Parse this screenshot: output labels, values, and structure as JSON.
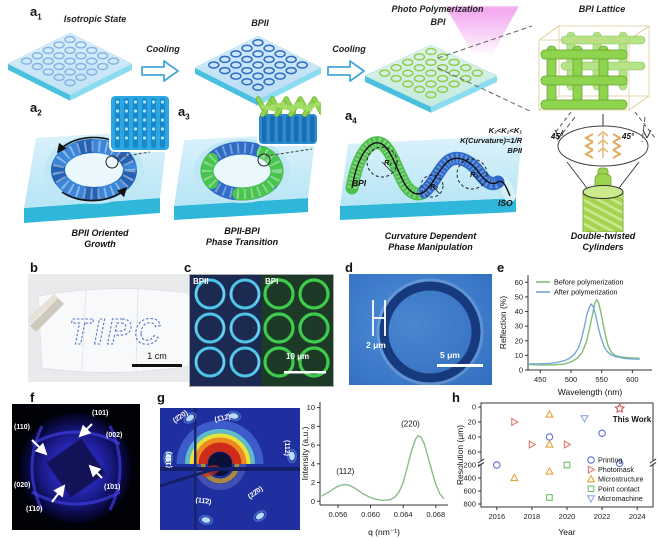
{
  "figure": {
    "a1": {
      "label": "a",
      "sub": "1",
      "isotropic_title": "Isotropic State",
      "cooling1": "Cooling",
      "bpii_title": "BPII",
      "cooling2": "Cooling",
      "photo_title": "Photo Polymerization",
      "bpi_label": "BPI",
      "lattice_title": "BPI Lattice"
    },
    "a2": {
      "label": "a",
      "sub": "2",
      "caption1": "BPII Oriented",
      "caption2": "Growth"
    },
    "a3": {
      "label": "a",
      "sub": "3",
      "caption1": "BPII-BPI",
      "caption2": "Phase Transition"
    },
    "a4": {
      "label": "a",
      "sub": "4",
      "eq1": "K₃<K₂<K₁",
      "eq2": "K(Curvature)=1/R",
      "eq3": "BPII",
      "bpi": "BPI",
      "iso": "ISO",
      "r1": "R₁",
      "r2": "R₂",
      "r3": "R₃",
      "caption1": "Curvature Dependent",
      "caption2": "Phase Manipulation"
    },
    "cylinders": {
      "angle_left": "45°",
      "angle_right": "45°",
      "caption1": "Double-twisted",
      "caption2": "Cylinders"
    },
    "b": {
      "label": "b",
      "sample_text": "TIPC",
      "scale_bar": "1 cm"
    },
    "c": {
      "label": "c",
      "left": "BPII",
      "right": "BPI",
      "scale_bar": "10 μm"
    },
    "d": {
      "label": "d",
      "thickness": "2 μm",
      "scale_bar": "5 μm"
    },
    "e": {
      "label": "e"
    },
    "f": {
      "label": "f",
      "l110": "(110)",
      "l101": "(101)",
      "l002": "(002)",
      "l020": "(020)",
      "lm110": "(1̄10)",
      "lm101": "(1̄01)"
    },
    "g": {
      "label": "g",
      "p_tl": "(2̄20)",
      "p_tc": "(1̄12̄)",
      "p_l": "(1̄12)",
      "p_r": "(112̄)",
      "p_bc": "(11̄2)",
      "p_br": "(22̄0)"
    },
    "h": {
      "label": "h"
    }
  },
  "colors": {
    "bpii_blue": "#2e6ac6",
    "bpi_green": "#8ed44e",
    "slab_teal": "#2fb7da"
  },
  "chart_data": [
    {
      "id": "reflection_spectrum",
      "type": "line",
      "xlabel": "Wavelength (nm)",
      "ylabel": "Reflection (%)",
      "xlim": [
        430,
        632
      ],
      "ylim": [
        0,
        65
      ],
      "xticks": [
        450,
        500,
        550,
        600
      ],
      "yticks": [
        0,
        10,
        20,
        30,
        40,
        50,
        60
      ],
      "xdp": 0,
      "legend_position": "top-left",
      "series": [
        {
          "name": "Before polymerization",
          "color": "#82bd72",
          "points": [
            [
              430,
              3.8
            ],
            [
              450,
              3.5
            ],
            [
              470,
              3.5
            ],
            [
              488,
              4
            ],
            [
              500,
              5.5
            ],
            [
              510,
              8
            ],
            [
              518,
              12
            ],
            [
              525,
              19
            ],
            [
              530,
              28
            ],
            [
              535,
              38
            ],
            [
              539,
              46
            ],
            [
              542,
              48
            ],
            [
              545,
              46
            ],
            [
              549,
              39
            ],
            [
              553,
              30
            ],
            [
              557,
              22
            ],
            [
              561,
              16
            ],
            [
              566,
              12
            ],
            [
              572,
              10
            ],
            [
              580,
              9
            ],
            [
              590,
              8.5
            ],
            [
              600,
              8.2
            ],
            [
              612,
              8
            ]
          ]
        },
        {
          "name": "After polymerization",
          "color": "#72a8d8",
          "points": [
            [
              430,
              4.2
            ],
            [
              450,
              4.2
            ],
            [
              465,
              4.5
            ],
            [
              478,
              5.2
            ],
            [
              490,
              6.5
            ],
            [
              498,
              8
            ],
            [
              506,
              11
            ],
            [
              512,
              15
            ],
            [
              517,
              21
            ],
            [
              522,
              30
            ],
            [
              526,
              38
            ],
            [
              530,
              43
            ],
            [
              533,
              45
            ],
            [
              536,
              43.5
            ],
            [
              540,
              38
            ],
            [
              544,
              30
            ],
            [
              549,
              22
            ],
            [
              554,
              16
            ],
            [
              559,
              12.5
            ],
            [
              565,
              10.5
            ],
            [
              572,
              9.3
            ],
            [
              580,
              8.5
            ],
            [
              590,
              7.9
            ],
            [
              600,
              7.6
            ],
            [
              612,
              7.4
            ]
          ]
        }
      ]
    },
    {
      "id": "saxs_intensity",
      "type": "line",
      "xlabel": "q (nm⁻¹)",
      "ylabel": "Intensity (a.u.)",
      "xlim": [
        0.0538,
        0.0695
      ],
      "ylim": [
        -0.4,
        10.6
      ],
      "xticks": [
        0.056,
        0.06,
        0.064,
        0.068
      ],
      "yticks": [
        0,
        2,
        4,
        6,
        8,
        10
      ],
      "xdp": 3,
      "annotations": [
        {
          "text": "(112)",
          "x": 0.0569,
          "y": 2.9
        },
        {
          "text": "(220)",
          "x": 0.0649,
          "y": 8.0
        }
      ],
      "series": [
        {
          "name": "SAXS intensity",
          "color": "#8cbb8c",
          "points": [
            [
              0.054,
              0.55
            ],
            [
              0.0545,
              0.8
            ],
            [
              0.055,
              1.05
            ],
            [
              0.0555,
              1.35
            ],
            [
              0.056,
              1.6
            ],
            [
              0.0565,
              1.75
            ],
            [
              0.057,
              1.78
            ],
            [
              0.0575,
              1.65
            ],
            [
              0.058,
              1.45
            ],
            [
              0.0585,
              1.15
            ],
            [
              0.059,
              0.85
            ],
            [
              0.0595,
              0.6
            ],
            [
              0.06,
              0.4
            ],
            [
              0.0605,
              0.25
            ],
            [
              0.061,
              0.15
            ],
            [
              0.0615,
              0.1
            ],
            [
              0.062,
              0.12
            ],
            [
              0.0625,
              0.2
            ],
            [
              0.063,
              0.45
            ],
            [
              0.0635,
              1.0
            ],
            [
              0.064,
              2.0
            ],
            [
              0.0645,
              3.6
            ],
            [
              0.065,
              5.3
            ],
            [
              0.0655,
              6.6
            ],
            [
              0.0658,
              7.0
            ],
            [
              0.0662,
              6.85
            ],
            [
              0.0666,
              6.1
            ],
            [
              0.067,
              4.9
            ],
            [
              0.0675,
              3.3
            ],
            [
              0.068,
              1.8
            ],
            [
              0.0685,
              0.8
            ],
            [
              0.069,
              0.25
            ]
          ]
        }
      ]
    },
    {
      "id": "resolution_vs_year",
      "type": "scatter",
      "xlabel": "Year",
      "ylabel": "Resolution (μm)",
      "xlim": [
        2015.1,
        2024.9
      ],
      "xticks": [
        2016,
        2018,
        2020,
        2022,
        2024
      ],
      "broken_y": {
        "upper_lim": [
          0,
          90
        ],
        "upper_ticks": [
          0,
          20,
          40,
          60
        ],
        "lower_lim": [
          100,
          900
        ],
        "lower_ticks": [
          200,
          400,
          600,
          800
        ]
      },
      "annotation": {
        "text": "This Work",
        "x": 2024.8,
        "y": 20
      },
      "legend_position": "lower-right",
      "series": [
        {
          "name": "Printing",
          "marker": "circle",
          "color": "#5b6ed6",
          "legend": true,
          "points": [
            [
              2016,
              200
            ],
            [
              2019,
              40
            ],
            [
              2022,
              35
            ],
            [
              2023,
              75
            ]
          ]
        },
        {
          "name": "Photomask",
          "marker": "triangle-right",
          "color": "#e07a68",
          "legend": true,
          "points": [
            [
              2017,
              20
            ],
            [
              2018,
              50
            ],
            [
              2020,
              50
            ]
          ]
        },
        {
          "name": "Microstructure",
          "marker": "triangle-up",
          "color": "#e6a23c",
          "legend": true,
          "points": [
            [
              2017,
              400
            ],
            [
              2019,
              10
            ],
            [
              2019,
              50
            ],
            [
              2019,
              300
            ]
          ]
        },
        {
          "name": "Point contact",
          "marker": "square",
          "color": "#6cbf6c",
          "legend": true,
          "points": [
            [
              2019,
              700
            ],
            [
              2020,
              200
            ]
          ]
        },
        {
          "name": "Micromachine",
          "marker": "triangle-down",
          "color": "#8fa8e0",
          "legend": true,
          "points": [
            [
              2021,
              15
            ]
          ]
        },
        {
          "name": "This Work",
          "marker": "star",
          "color": "#d05858",
          "legend": false,
          "points": [
            [
              2023,
              2
            ]
          ]
        }
      ]
    }
  ]
}
